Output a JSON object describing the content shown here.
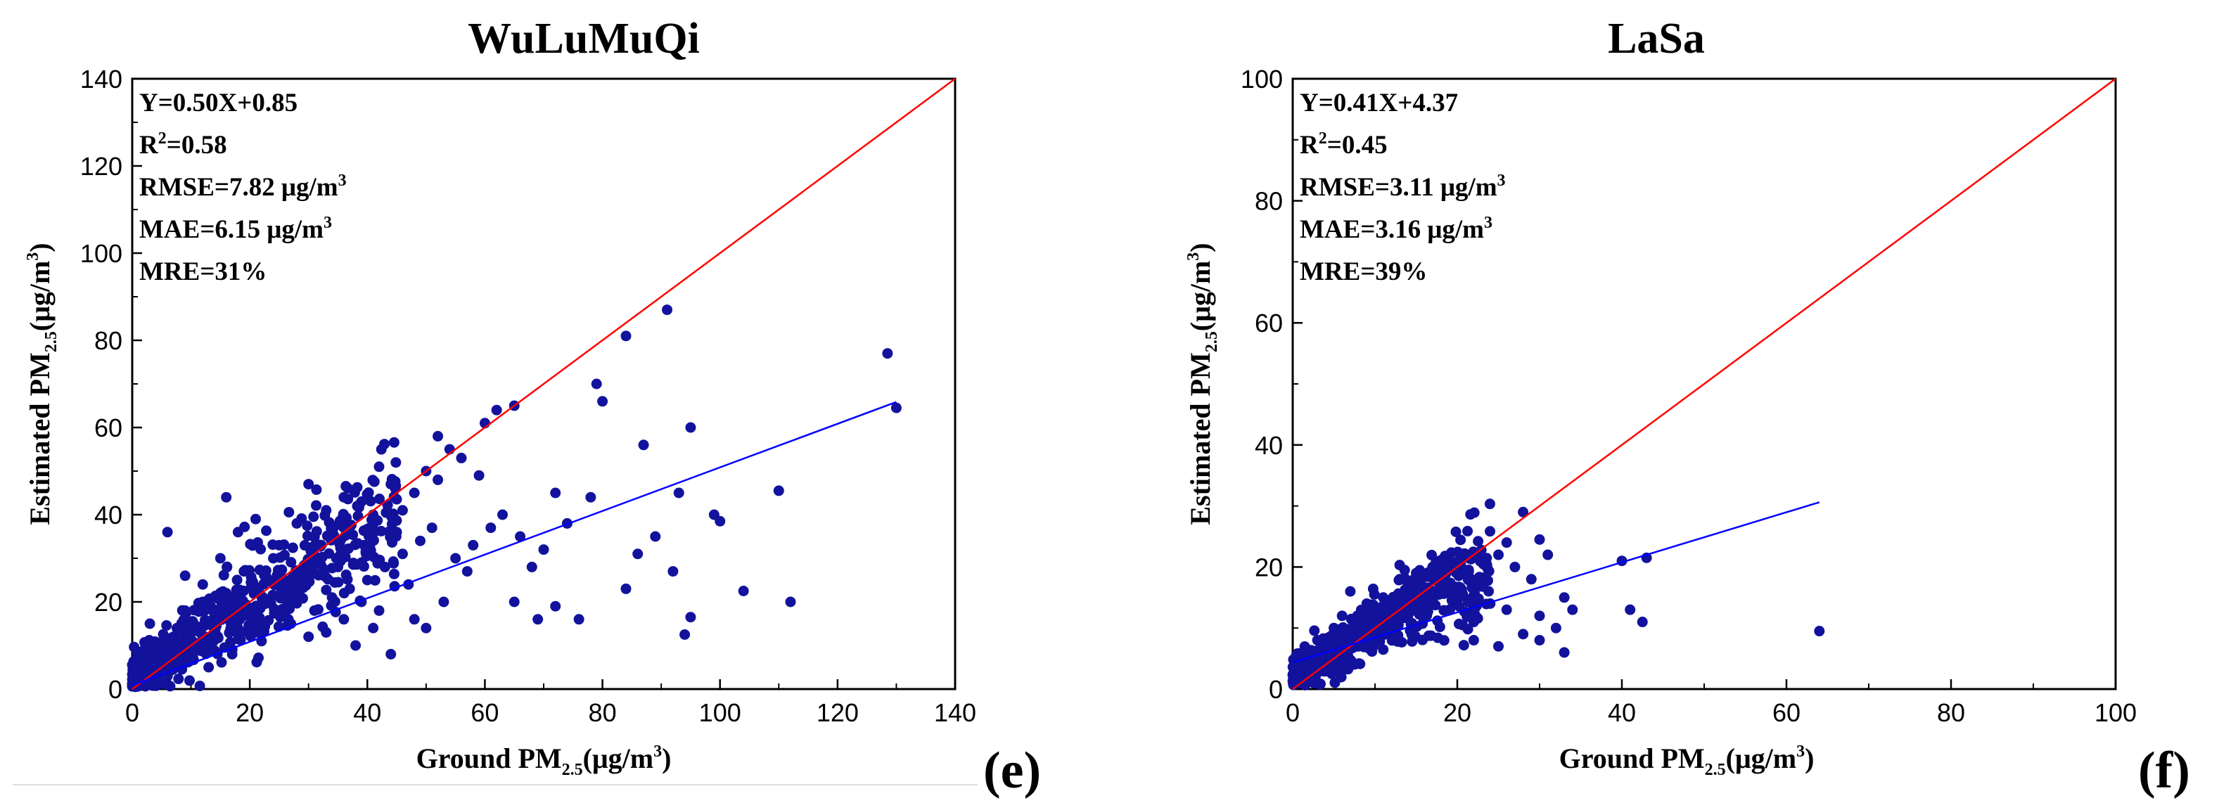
{
  "chart_data": [
    {
      "type": "scatter",
      "title": "WuLuMuQi",
      "panel_label": "(e)",
      "xlabel": {
        "main": "Ground  PM",
        "sub": "2.5",
        "unit": "(μg/m",
        "unit_sup": "3",
        "close": ")"
      },
      "ylabel": {
        "main": "Estimated  PM",
        "sub": "2.5",
        "unit": "(μg/m",
        "unit_sup": "3",
        "close": ")"
      },
      "xlim": [
        0,
        140
      ],
      "ylim": [
        0,
        140
      ],
      "xticks": [
        "0",
        "20",
        "40",
        "60",
        "80",
        "100",
        "120",
        "140"
      ],
      "yticks": [
        "0",
        "20",
        "40",
        "60",
        "80",
        "100",
        "120",
        "140"
      ],
      "stats": {
        "equation": "Y=0.50X+0.85",
        "r2_label": "R",
        "r2_sup": "2",
        "r2_value": "=0.58",
        "rmse": "RMSE=7.82 μg/m",
        "rmse_sup": "3",
        "mae": "MAE=6.15 μg/m",
        "mae_sup": "3",
        "mre": "MRE=31%"
      },
      "one_to_one": {
        "color": "#ff0000",
        "x": [
          0,
          140
        ],
        "y": [
          0,
          140
        ]
      },
      "fit_line": {
        "color": "#0000ff",
        "slope": 0.5,
        "intercept": 0.85,
        "x_range": [
          0,
          130
        ]
      },
      "point_color": "#12129c",
      "points": [
        [
          128.5,
          77
        ],
        [
          130,
          64.5
        ],
        [
          91,
          87
        ],
        [
          84,
          81
        ],
        [
          79,
          70
        ],
        [
          80,
          66
        ],
        [
          95,
          60
        ],
        [
          87,
          56
        ],
        [
          65,
          65
        ],
        [
          62,
          64
        ],
        [
          60,
          61
        ],
        [
          52,
          58
        ],
        [
          54,
          55
        ],
        [
          42,
          51
        ],
        [
          72,
          45
        ],
        [
          74,
          38
        ],
        [
          78,
          44
        ],
        [
          99,
          40
        ],
        [
          100,
          38.5
        ],
        [
          110,
          45.5
        ],
        [
          93,
          45
        ],
        [
          89,
          35
        ],
        [
          86,
          31
        ],
        [
          92,
          27
        ],
        [
          84,
          23
        ],
        [
          104,
          22.5
        ],
        [
          112,
          20
        ],
        [
          95,
          16.5
        ],
        [
          94,
          12.5
        ],
        [
          76,
          16
        ],
        [
          69,
          16
        ],
        [
          72,
          19
        ],
        [
          65,
          20
        ],
        [
          61,
          37
        ],
        [
          58,
          33
        ],
        [
          55,
          30
        ],
        [
          53,
          20
        ],
        [
          50,
          14
        ],
        [
          44,
          8
        ],
        [
          38,
          10
        ],
        [
          30,
          12
        ],
        [
          16,
          44
        ],
        [
          30,
          47
        ],
        [
          6,
          36
        ],
        [
          3,
          15
        ],
        [
          1,
          5
        ],
        [
          2,
          2
        ],
        [
          5,
          8
        ],
        [
          8,
          10
        ],
        [
          9,
          26
        ],
        [
          12,
          20
        ],
        [
          15,
          30
        ],
        [
          18,
          36
        ],
        [
          21,
          39
        ],
        [
          25,
          33
        ],
        [
          28,
          38
        ],
        [
          33,
          41
        ],
        [
          36,
          44
        ],
        [
          39,
          43
        ],
        [
          41,
          40
        ],
        [
          44,
          47
        ],
        [
          46,
          41
        ],
        [
          48,
          45
        ],
        [
          50,
          50
        ],
        [
          52,
          48
        ],
        [
          56,
          53
        ],
        [
          59,
          49
        ],
        [
          35,
          28
        ],
        [
          32,
          30
        ],
        [
          29,
          26
        ],
        [
          26,
          22
        ],
        [
          23,
          25
        ],
        [
          20,
          18
        ],
        [
          18,
          14
        ],
        [
          14,
          12
        ],
        [
          11,
          9
        ],
        [
          10,
          15
        ],
        [
          7,
          12
        ],
        [
          4,
          4
        ],
        [
          6,
          3
        ],
        [
          13,
          5
        ],
        [
          17,
          8
        ],
        [
          22,
          11
        ],
        [
          27,
          15
        ],
        [
          31,
          18
        ],
        [
          34,
          21
        ],
        [
          37,
          23
        ],
        [
          40,
          25
        ],
        [
          43,
          28
        ],
        [
          46,
          31
        ],
        [
          49,
          34
        ],
        [
          51,
          37
        ],
        [
          24,
          30
        ],
        [
          19,
          27
        ],
        [
          16,
          22
        ],
        [
          45,
          36
        ],
        [
          47,
          24
        ],
        [
          42,
          18
        ],
        [
          39,
          20
        ],
        [
          36,
          16
        ],
        [
          33,
          13
        ],
        [
          26,
          17
        ],
        [
          21,
          13
        ],
        [
          57,
          27
        ],
        [
          63,
          40
        ],
        [
          66,
          35
        ],
        [
          68,
          28
        ],
        [
          70,
          32
        ],
        [
          48,
          16
        ],
        [
          41,
          14
        ],
        [
          9,
          18
        ],
        [
          12,
          24
        ],
        [
          3,
          10
        ]
      ],
      "cloud": {
        "count": 560,
        "x_range": [
          0,
          45
        ]
      }
    },
    {
      "type": "scatter",
      "title": "LaSa",
      "panel_label": "(f)",
      "xlabel": {
        "main": "Ground  PM",
        "sub": "2.5",
        "unit": "(μg/m",
        "unit_sup": "3",
        "close": ")"
      },
      "ylabel": {
        "main": "Estimated  PM",
        "sub": "2.5",
        "unit": "(μg/m",
        "unit_sup": "3",
        "close": ")"
      },
      "xlim": [
        0,
        100
      ],
      "ylim": [
        0,
        100
      ],
      "xticks": [
        "0",
        "20",
        "40",
        "60",
        "80",
        "100"
      ],
      "yticks": [
        "0",
        "20",
        "40",
        "60",
        "80",
        "100"
      ],
      "stats": {
        "equation": "Y=0.41X+4.37",
        "r2_label": "R",
        "r2_sup": "2",
        "r2_value": "=0.45",
        "rmse": "RMSE=3.11 μg/m",
        "rmse_sup": "3",
        "mae": "MAE=3.16 μg/m",
        "mae_sup": "3",
        "mre": "MRE=39%"
      },
      "one_to_one": {
        "color": "#ff0000",
        "x": [
          0,
          100
        ],
        "y": [
          0,
          100
        ]
      },
      "fit_line": {
        "color": "#0000ff",
        "slope": 0.41,
        "intercept": 4.37,
        "x_range": [
          0,
          64
        ]
      },
      "point_color": "#12129c",
      "points": [
        [
          64,
          9.5
        ],
        [
          43,
          21.5
        ],
        [
          40,
          21
        ],
        [
          41,
          13
        ],
        [
          42.5,
          11
        ],
        [
          28,
          29
        ],
        [
          26,
          24
        ],
        [
          30,
          24.5
        ],
        [
          31,
          22
        ],
        [
          33,
          15
        ],
        [
          33,
          6
        ],
        [
          30,
          8
        ],
        [
          32,
          10
        ],
        [
          29,
          18
        ],
        [
          27,
          20
        ],
        [
          25,
          22
        ],
        [
          24,
          14
        ],
        [
          22,
          11
        ],
        [
          20,
          19
        ],
        [
          18,
          17
        ],
        [
          16,
          15
        ],
        [
          14,
          12
        ],
        [
          12,
          10
        ],
        [
          10,
          9
        ],
        [
          8,
          7
        ],
        [
          6,
          5
        ],
        [
          4,
          3
        ],
        [
          2,
          2
        ],
        [
          1,
          1
        ],
        [
          7,
          16
        ],
        [
          9,
          14
        ],
        [
          11,
          15
        ],
        [
          13,
          18
        ],
        [
          15,
          19
        ],
        [
          17,
          20
        ],
        [
          19,
          21
        ],
        [
          21,
          22
        ],
        [
          23,
          17
        ],
        [
          26,
          13
        ],
        [
          28,
          9
        ],
        [
          30,
          12
        ],
        [
          34,
          13
        ],
        [
          3,
          8
        ],
        [
          5,
          10
        ],
        [
          2,
          5
        ],
        [
          6,
          12
        ],
        [
          25,
          7
        ],
        [
          22,
          8
        ]
      ],
      "cloud": {
        "count": 520,
        "x_range": [
          0,
          24
        ]
      }
    }
  ]
}
